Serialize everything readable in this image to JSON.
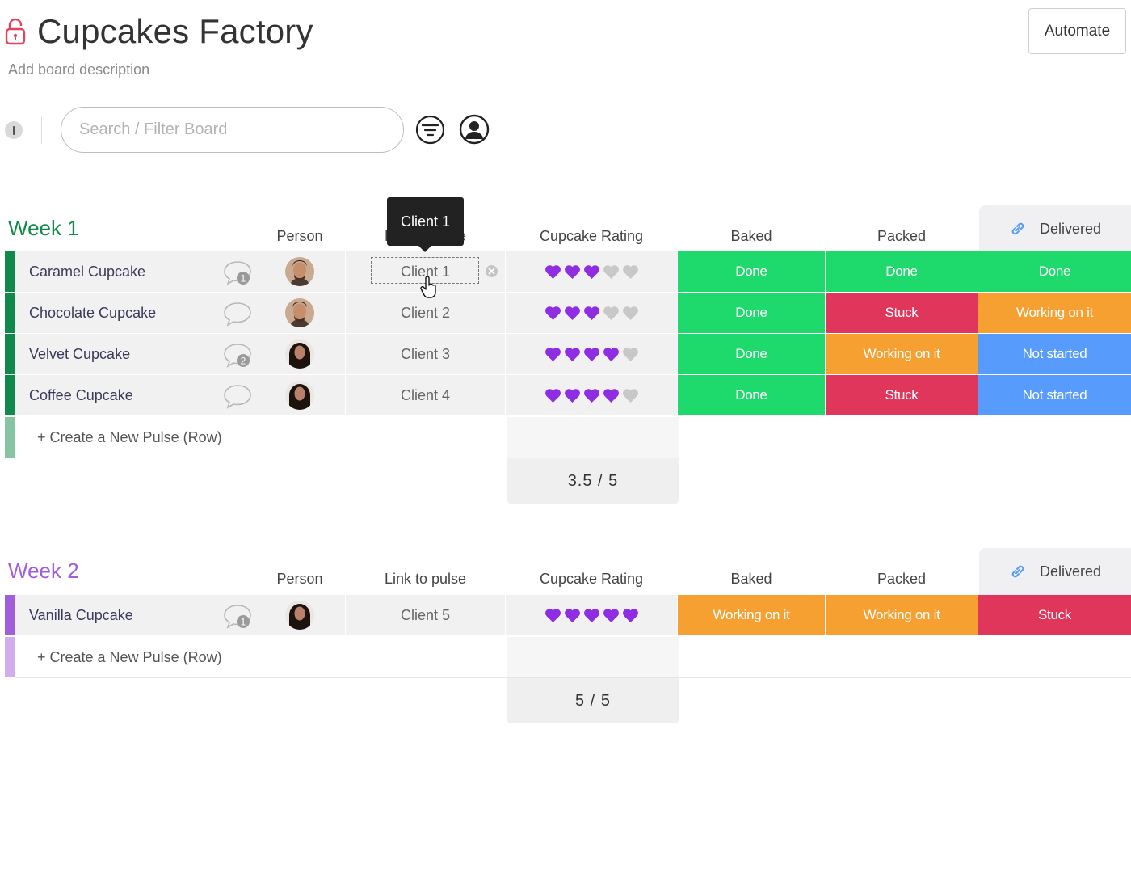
{
  "board": {
    "title": "Cupcakes Factory",
    "description": "Add board description",
    "automate_label": "Automate"
  },
  "toolbar": {
    "search_placeholder": "Search / Filter Board"
  },
  "columns": {
    "person": "Person",
    "link": "Link to pulse",
    "rating": "Cupcake Rating",
    "baked": "Baked",
    "packed": "Packed",
    "delivered": "Delivered"
  },
  "colors": {
    "done": "#1ed96b",
    "stuck": "#e0365b",
    "working": "#f6a032",
    "not_started": "#579bfc",
    "week1": "#0f8a4a",
    "week2": "#a25ddc",
    "heart_on": "#8e2de2",
    "heart_off": "#c8c8c8"
  },
  "tooltip": "Client 1",
  "groups": [
    {
      "title": "Week 1",
      "rows": [
        {
          "name": "Caramel Cupcake",
          "comments": "1",
          "avatar": "man",
          "link": "Client 1",
          "rating": 3,
          "baked": "Done",
          "packed": "Done",
          "delivered": "Done"
        },
        {
          "name": "Chocolate Cupcake",
          "comments": "",
          "avatar": "man",
          "link": "Client 2",
          "rating": 3,
          "baked": "Done",
          "packed": "Stuck",
          "delivered": "Working on it"
        },
        {
          "name": "Velvet Cupcake",
          "comments": "2",
          "avatar": "woman",
          "link": "Client 3",
          "rating": 4,
          "baked": "Done",
          "packed": "Working on it",
          "delivered": "Not started"
        },
        {
          "name": "Coffee Cupcake",
          "comments": "",
          "avatar": "woman",
          "link": "Client 4",
          "rating": 4,
          "baked": "Done",
          "packed": "Stuck",
          "delivered": "Not started"
        }
      ],
      "add_row_label": "+ Create a New Pulse (Row)",
      "summary": "3.5 / 5"
    },
    {
      "title": "Week 2",
      "rows": [
        {
          "name": "Vanilla Cupcake",
          "comments": "1",
          "avatar": "woman",
          "link": "Client 5",
          "rating": 5,
          "baked": "Working on it",
          "packed": "Working on it",
          "delivered": "Stuck"
        }
      ],
      "add_row_label": "+ Create a New Pulse (Row)",
      "summary": "5 / 5"
    }
  ]
}
